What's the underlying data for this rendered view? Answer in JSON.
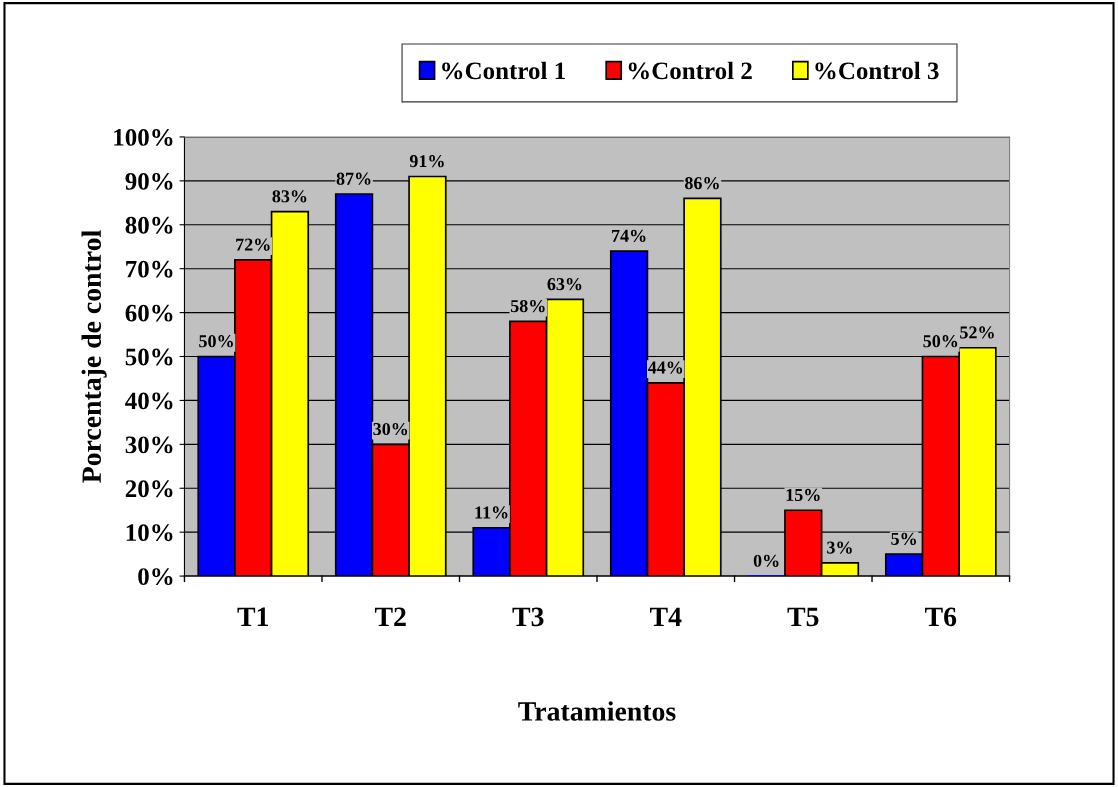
{
  "chart_data": {
    "type": "bar",
    "xlabel": "Tratamientos",
    "ylabel": "Porcentaje de control",
    "categories": [
      "T1",
      "T2",
      "T3",
      "T4",
      "T5",
      "T6"
    ],
    "series": [
      {
        "name": "%Control 1",
        "color": "#0000ff",
        "values": [
          50,
          87,
          11,
          74,
          0,
          5
        ],
        "value_labels": [
          "50%",
          "87%",
          "11%",
          "74%",
          "0%",
          "5%"
        ]
      },
      {
        "name": "%Control 2",
        "color": "#ff0000",
        "values": [
          72,
          30,
          58,
          44,
          15,
          50
        ],
        "value_labels": [
          "72%",
          "30%",
          "58%",
          "44%",
          "15%",
          "50%"
        ]
      },
      {
        "name": "%Control 3",
        "color": "#ffff00",
        "values": [
          83,
          91,
          63,
          86,
          3,
          52
        ],
        "value_labels": [
          "83%",
          "91%",
          "63%",
          "86%",
          "3%",
          "52%"
        ]
      }
    ],
    "ylim": [
      0,
      100
    ],
    "yticks": [
      {
        "value": 0,
        "label": "0%"
      },
      {
        "value": 10,
        "label": "10%"
      },
      {
        "value": 20,
        "label": "20%"
      },
      {
        "value": 30,
        "label": "30%"
      },
      {
        "value": 40,
        "label": "40%"
      },
      {
        "value": 50,
        "label": "50%"
      },
      {
        "value": 60,
        "label": "60%"
      },
      {
        "value": 70,
        "label": "70%"
      },
      {
        "value": 80,
        "label": "80%"
      },
      {
        "value": 90,
        "label": "90%"
      },
      {
        "value": 100,
        "label": "100%"
      }
    ],
    "grid": "y",
    "legend": "top"
  }
}
